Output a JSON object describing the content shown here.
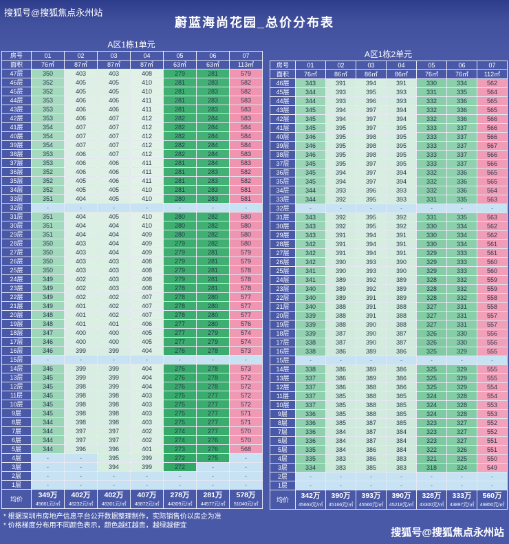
{
  "page": {
    "brand_top": "搜狐号@搜狐焦点永州站",
    "title": "蔚蓝海尚花园_总价分布表",
    "footnote1": "* 根据深圳市房地产信息平台公开数据整理制作，实际销售价以房企为准",
    "footnote2": "* 价格梯度分布用不同颜色表示，颜色越红越贵，越绿越便宜",
    "footer_brand": "搜狐号@搜狐焦点永州站"
  },
  "palette": {
    "background": "#4a59a7",
    "background_top": "#2e3c8c",
    "grid_line": "#ffffff",
    "header_text": "#ffffff",
    "cell_text": "#25354a",
    "dash_bg": "#c7e3f3",
    "dash_text": "#41658b",
    "heat_stops": [
      [
        260,
        "#1f9e58"
      ],
      [
        285,
        "#46b377"
      ],
      [
        320,
        "#79c89d"
      ],
      [
        350,
        "#a2d8bc"
      ],
      [
        385,
        "#cfeadc"
      ],
      [
        420,
        "#e9f5ec"
      ],
      [
        460,
        "#f8e3e9"
      ],
      [
        510,
        "#f6bccd"
      ],
      [
        555,
        "#f2a0b9"
      ],
      [
        600,
        "#ef8cab"
      ]
    ]
  },
  "chart_data": [
    {
      "type": "table",
      "unit_label": "A区1栋1单元",
      "headers": {
        "room": "房号",
        "area": "面积",
        "avg": "均价"
      },
      "room_numbers": [
        "01",
        "02",
        "03",
        "04",
        "05",
        "06",
        "07"
      ],
      "areas": [
        "76㎡",
        "87㎡",
        "87㎡",
        "87㎡",
        "63㎡",
        "63㎡",
        "113㎡"
      ],
      "rows": [
        [
          "47层",
          350,
          403,
          403,
          408,
          279,
          281,
          579
        ],
        [
          "46层",
          352,
          405,
          405,
          410,
          281,
          283,
          582
        ],
        [
          "45层",
          352,
          405,
          405,
          410,
          281,
          283,
          582
        ],
        [
          "44层",
          353,
          406,
          406,
          411,
          281,
          283,
          583
        ],
        [
          "43层",
          353,
          406,
          406,
          411,
          281,
          283,
          583
        ],
        [
          "42层",
          353,
          406,
          407,
          412,
          282,
          284,
          583
        ],
        [
          "41层",
          354,
          407,
          407,
          412,
          282,
          284,
          584
        ],
        [
          "40层",
          354,
          407,
          407,
          412,
          282,
          284,
          584
        ],
        [
          "39层",
          354,
          407,
          407,
          412,
          282,
          284,
          584
        ],
        [
          "38层",
          353,
          406,
          407,
          412,
          282,
          284,
          583
        ],
        [
          "37层",
          353,
          406,
          406,
          411,
          281,
          284,
          583
        ],
        [
          "36层",
          352,
          406,
          406,
          411,
          281,
          283,
          582
        ],
        [
          "35层",
          352,
          405,
          406,
          411,
          281,
          283,
          582
        ],
        [
          "34层",
          352,
          405,
          405,
          410,
          281,
          283,
          581
        ],
        [
          "33层",
          351,
          404,
          405,
          410,
          280,
          283,
          581
        ],
        [
          "32层",
          "-",
          "-",
          "-",
          "-",
          "-",
          "-",
          "-"
        ],
        [
          "31层",
          351,
          404,
          405,
          410,
          280,
          282,
          580
        ],
        [
          "30层",
          351,
          404,
          404,
          410,
          280,
          282,
          580
        ],
        [
          "29层",
          351,
          404,
          404,
          409,
          280,
          282,
          580
        ],
        [
          "28层",
          350,
          403,
          404,
          409,
          279,
          282,
          580
        ],
        [
          "27层",
          350,
          403,
          404,
          409,
          279,
          281,
          579
        ],
        [
          "26层",
          350,
          403,
          403,
          408,
          279,
          281,
          579
        ],
        [
          "25层",
          350,
          403,
          403,
          408,
          279,
          281,
          578
        ],
        [
          "24层",
          349,
          402,
          403,
          408,
          279,
          281,
          578
        ],
        [
          "23层",
          349,
          402,
          403,
          408,
          278,
          281,
          578
        ],
        [
          "22层",
          349,
          402,
          402,
          407,
          278,
          280,
          577
        ],
        [
          "21层",
          349,
          401,
          402,
          407,
          278,
          280,
          577
        ],
        [
          "20层",
          348,
          401,
          402,
          407,
          278,
          280,
          577
        ],
        [
          "19层",
          348,
          401,
          401,
          406,
          277,
          280,
          576
        ],
        [
          "18层",
          347,
          400,
          400,
          405,
          277,
          279,
          574
        ],
        [
          "17层",
          346,
          400,
          400,
          405,
          277,
          279,
          574
        ],
        [
          "16层",
          346,
          399,
          399,
          404,
          276,
          278,
          573
        ],
        [
          "15层",
          "-",
          "-",
          "-",
          "-",
          "-",
          "-",
          "-"
        ],
        [
          "14层",
          346,
          399,
          399,
          404,
          276,
          278,
          573
        ],
        [
          "13层",
          345,
          399,
          399,
          404,
          276,
          278,
          572
        ],
        [
          "12层",
          345,
          398,
          399,
          404,
          276,
          278,
          572
        ],
        [
          "11层",
          345,
          398,
          398,
          403,
          275,
          277,
          572
        ],
        [
          "10层",
          345,
          398,
          398,
          403,
          275,
          277,
          572
        ],
        [
          "9层",
          345,
          398,
          398,
          403,
          275,
          277,
          571
        ],
        [
          "8层",
          344,
          398,
          398,
          403,
          275,
          277,
          571
        ],
        [
          "7层",
          344,
          397,
          397,
          402,
          274,
          277,
          570
        ],
        [
          "6层",
          344,
          397,
          397,
          402,
          274,
          276,
          570
        ],
        [
          "5层",
          344,
          396,
          396,
          401,
          273,
          276,
          568
        ],
        [
          "4层",
          "-",
          "-",
          395,
          399,
          272,
          275,
          "-"
        ],
        [
          "3层",
          "-",
          "-",
          394,
          399,
          272,
          "-",
          "-"
        ],
        [
          "2层",
          "-",
          "-",
          "-",
          "-",
          "-",
          "-",
          "-"
        ],
        [
          "1层",
          "-",
          "-",
          "-",
          "-",
          "-",
          "-",
          "-"
        ]
      ],
      "avg_prices": [
        "349万",
        "402万",
        "402万",
        "407万",
        "278万",
        "281万",
        "578万"
      ],
      "avg_unit_prices": [
        "45661元/㎡",
        "46232元/㎡",
        "46301元/㎡",
        "46872元/㎡",
        "44309元/㎡",
        "44577元/㎡",
        "51040元/㎡"
      ]
    },
    {
      "type": "table",
      "unit_label": "A区1栋2单元",
      "headers": {
        "room": "房号",
        "area": "面积",
        "avg": "均价"
      },
      "room_numbers": [
        "01",
        "02",
        "03",
        "04",
        "05",
        "06",
        "07"
      ],
      "areas": [
        "76㎡",
        "86㎡",
        "86㎡",
        "86㎡",
        "76㎡",
        "76㎡",
        "112㎡"
      ],
      "rows": [
        [
          "46层",
          343,
          391,
          394,
          391,
          330,
          334,
          562
        ],
        [
          "45层",
          344,
          393,
          395,
          393,
          331,
          335,
          564
        ],
        [
          "44层",
          344,
          393,
          396,
          393,
          332,
          336,
          565
        ],
        [
          "43层",
          345,
          394,
          397,
          394,
          332,
          336,
          565
        ],
        [
          "42层",
          345,
          394,
          397,
          394,
          332,
          336,
          566
        ],
        [
          "41层",
          345,
          395,
          397,
          395,
          333,
          337,
          566
        ],
        [
          "40层",
          346,
          395,
          398,
          395,
          333,
          337,
          566
        ],
        [
          "39层",
          346,
          395,
          398,
          395,
          333,
          337,
          567
        ],
        [
          "38层",
          346,
          395,
          398,
          395,
          333,
          337,
          566
        ],
        [
          "37层",
          345,
          395,
          397,
          395,
          333,
          337,
          566
        ],
        [
          "36层",
          345,
          394,
          397,
          394,
          332,
          336,
          565
        ],
        [
          "35层",
          345,
          394,
          397,
          394,
          332,
          336,
          565
        ],
        [
          "34层",
          344,
          393,
          396,
          393,
          332,
          336,
          564
        ],
        [
          "33层",
          344,
          392,
          395,
          393,
          331,
          335,
          563
        ],
        [
          "32层",
          "-",
          "-",
          "-",
          "-",
          "-",
          "-",
          "-"
        ],
        [
          "31层",
          343,
          392,
          395,
          392,
          331,
          335,
          563
        ],
        [
          "30层",
          343,
          392,
          395,
          392,
          330,
          334,
          562
        ],
        [
          "29层",
          343,
          391,
          394,
          391,
          330,
          334,
          562
        ],
        [
          "28层",
          342,
          391,
          394,
          391,
          330,
          334,
          561
        ],
        [
          "27层",
          342,
          391,
          394,
          391,
          329,
          333,
          561
        ],
        [
          "26层",
          342,
          390,
          393,
          390,
          329,
          333,
          560
        ],
        [
          "25层",
          341,
          390,
          393,
          390,
          329,
          333,
          560
        ],
        [
          "24层",
          341,
          389,
          392,
          389,
          328,
          332,
          559
        ],
        [
          "23层",
          340,
          389,
          392,
          389,
          328,
          332,
          559
        ],
        [
          "22层",
          340,
          389,
          391,
          389,
          328,
          332,
          558
        ],
        [
          "21层",
          340,
          388,
          391,
          388,
          327,
          331,
          558
        ],
        [
          "20层",
          339,
          388,
          391,
          388,
          327,
          331,
          557
        ],
        [
          "19层",
          339,
          388,
          390,
          388,
          327,
          331,
          557
        ],
        [
          "18层",
          339,
          387,
          390,
          387,
          326,
          330,
          556
        ],
        [
          "17层",
          338,
          387,
          390,
          387,
          326,
          330,
          556
        ],
        [
          "16层",
          338,
          386,
          389,
          386,
          325,
          329,
          555
        ],
        [
          "15层",
          "-",
          "-",
          "-",
          "-",
          "-",
          "-",
          "-"
        ],
        [
          "14层",
          338,
          386,
          389,
          386,
          325,
          329,
          555
        ],
        [
          "13层",
          337,
          386,
          389,
          386,
          325,
          329,
          555
        ],
        [
          "12层",
          337,
          386,
          388,
          386,
          325,
          329,
          554
        ],
        [
          "11层",
          337,
          385,
          388,
          385,
          324,
          328,
          554
        ],
        [
          "10层",
          337,
          385,
          388,
          385,
          324,
          328,
          553
        ],
        [
          "9层",
          336,
          385,
          388,
          385,
          324,
          328,
          553
        ],
        [
          "8层",
          336,
          385,
          387,
          385,
          323,
          327,
          552
        ],
        [
          "7层",
          336,
          384,
          387,
          384,
          323,
          327,
          552
        ],
        [
          "6层",
          336,
          384,
          387,
          384,
          323,
          327,
          551
        ],
        [
          "5层",
          335,
          384,
          386,
          384,
          322,
          326,
          551
        ],
        [
          "4层",
          335,
          383,
          386,
          383,
          321,
          325,
          550
        ],
        [
          "3层",
          334,
          383,
          385,
          383,
          318,
          324,
          549
        ],
        [
          "2层",
          "-",
          "-",
          "-",
          "-",
          "-",
          "-",
          "-"
        ],
        [
          "1层",
          "-",
          "-",
          "-",
          "-",
          "-",
          "-",
          "-"
        ]
      ],
      "avg_prices": [
        "342万",
        "390万",
        "393万",
        "390万",
        "328万",
        "333万",
        "560万"
      ],
      "avg_unit_prices": [
        "45663元/㎡",
        "45166元/㎡",
        "45560元/㎡",
        "45218元/㎡",
        "43300元/㎡",
        "43897元/㎡",
        "49850元/㎡"
      ]
    }
  ]
}
